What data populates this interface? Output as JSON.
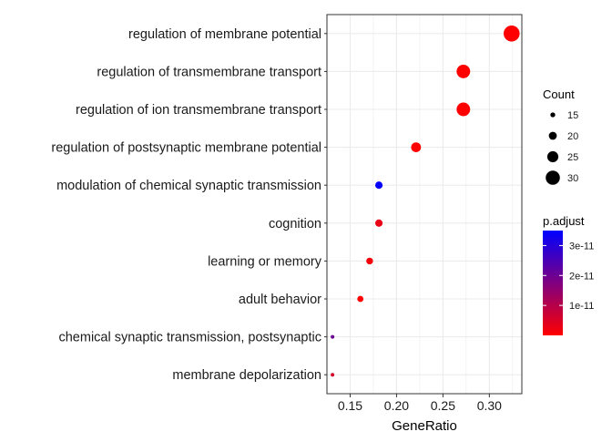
{
  "chart_data": {
    "type": "scatter",
    "xlabel": "GeneRatio",
    "xlim": [
      0.125,
      0.335
    ],
    "x_ticks": [
      "0.15",
      "0.20",
      "0.25",
      "0.30"
    ],
    "x_tick_values": [
      0.15,
      0.2,
      0.25,
      0.3
    ],
    "categories": [
      "regulation of membrane potential",
      "regulation of transmembrane transport",
      "regulation of ion transmembrane transport",
      "regulation of postsynaptic membrane potential",
      "modulation of chemical synaptic transmission",
      "cognition",
      "learning or memory",
      "adult behavior",
      "chemical synaptic transmission, postsynaptic",
      "membrane depolarization"
    ],
    "points": [
      {
        "term": "regulation of membrane potential",
        "gene_ratio": 0.324,
        "count": 33,
        "p_adjust": 0.0
      },
      {
        "term": "regulation of transmembrane transport",
        "gene_ratio": 0.272,
        "count": 29,
        "p_adjust": 0.0
      },
      {
        "term": "regulation of ion transmembrane transport",
        "gene_ratio": 0.272,
        "count": 29,
        "p_adjust": 0.0
      },
      {
        "term": "regulation of postsynaptic membrane potential",
        "gene_ratio": 0.221,
        "count": 23,
        "p_adjust": 0.0
      },
      {
        "term": "modulation of chemical synaptic transmission",
        "gene_ratio": 0.181,
        "count": 19,
        "p_adjust": 3.45e-11
      },
      {
        "term": "cognition",
        "gene_ratio": 0.181,
        "count": 19,
        "p_adjust": 3e-12
      },
      {
        "term": "learning or memory",
        "gene_ratio": 0.171,
        "count": 18,
        "p_adjust": 1.5e-12
      },
      {
        "term": "adult behavior",
        "gene_ratio": 0.161,
        "count": 17,
        "p_adjust": 0.0
      },
      {
        "term": "chemical synaptic transmission, postsynaptic",
        "gene_ratio": 0.131,
        "count": 13,
        "p_adjust": 2e-11
      },
      {
        "term": "membrane depolarization",
        "gene_ratio": 0.131,
        "count": 13,
        "p_adjust": 6e-12
      }
    ],
    "size_legend": {
      "title": "Count",
      "values": [
        15,
        20,
        25,
        30
      ],
      "labels": [
        "15",
        "20",
        "25",
        "30"
      ]
    },
    "color_legend": {
      "title": "p.adjust",
      "range": [
        0.0,
        3.5e-11
      ],
      "tick_values": [
        1e-11,
        2e-11,
        3e-11
      ],
      "labels": [
        "1e-11",
        "2e-11",
        "3e-11"
      ],
      "low_color": "#ff0000",
      "high_color": "#0000ff"
    },
    "grid": true,
    "panel_background": "#ffffff",
    "grid_color": "#ebebeb",
    "legend_position": "right"
  }
}
